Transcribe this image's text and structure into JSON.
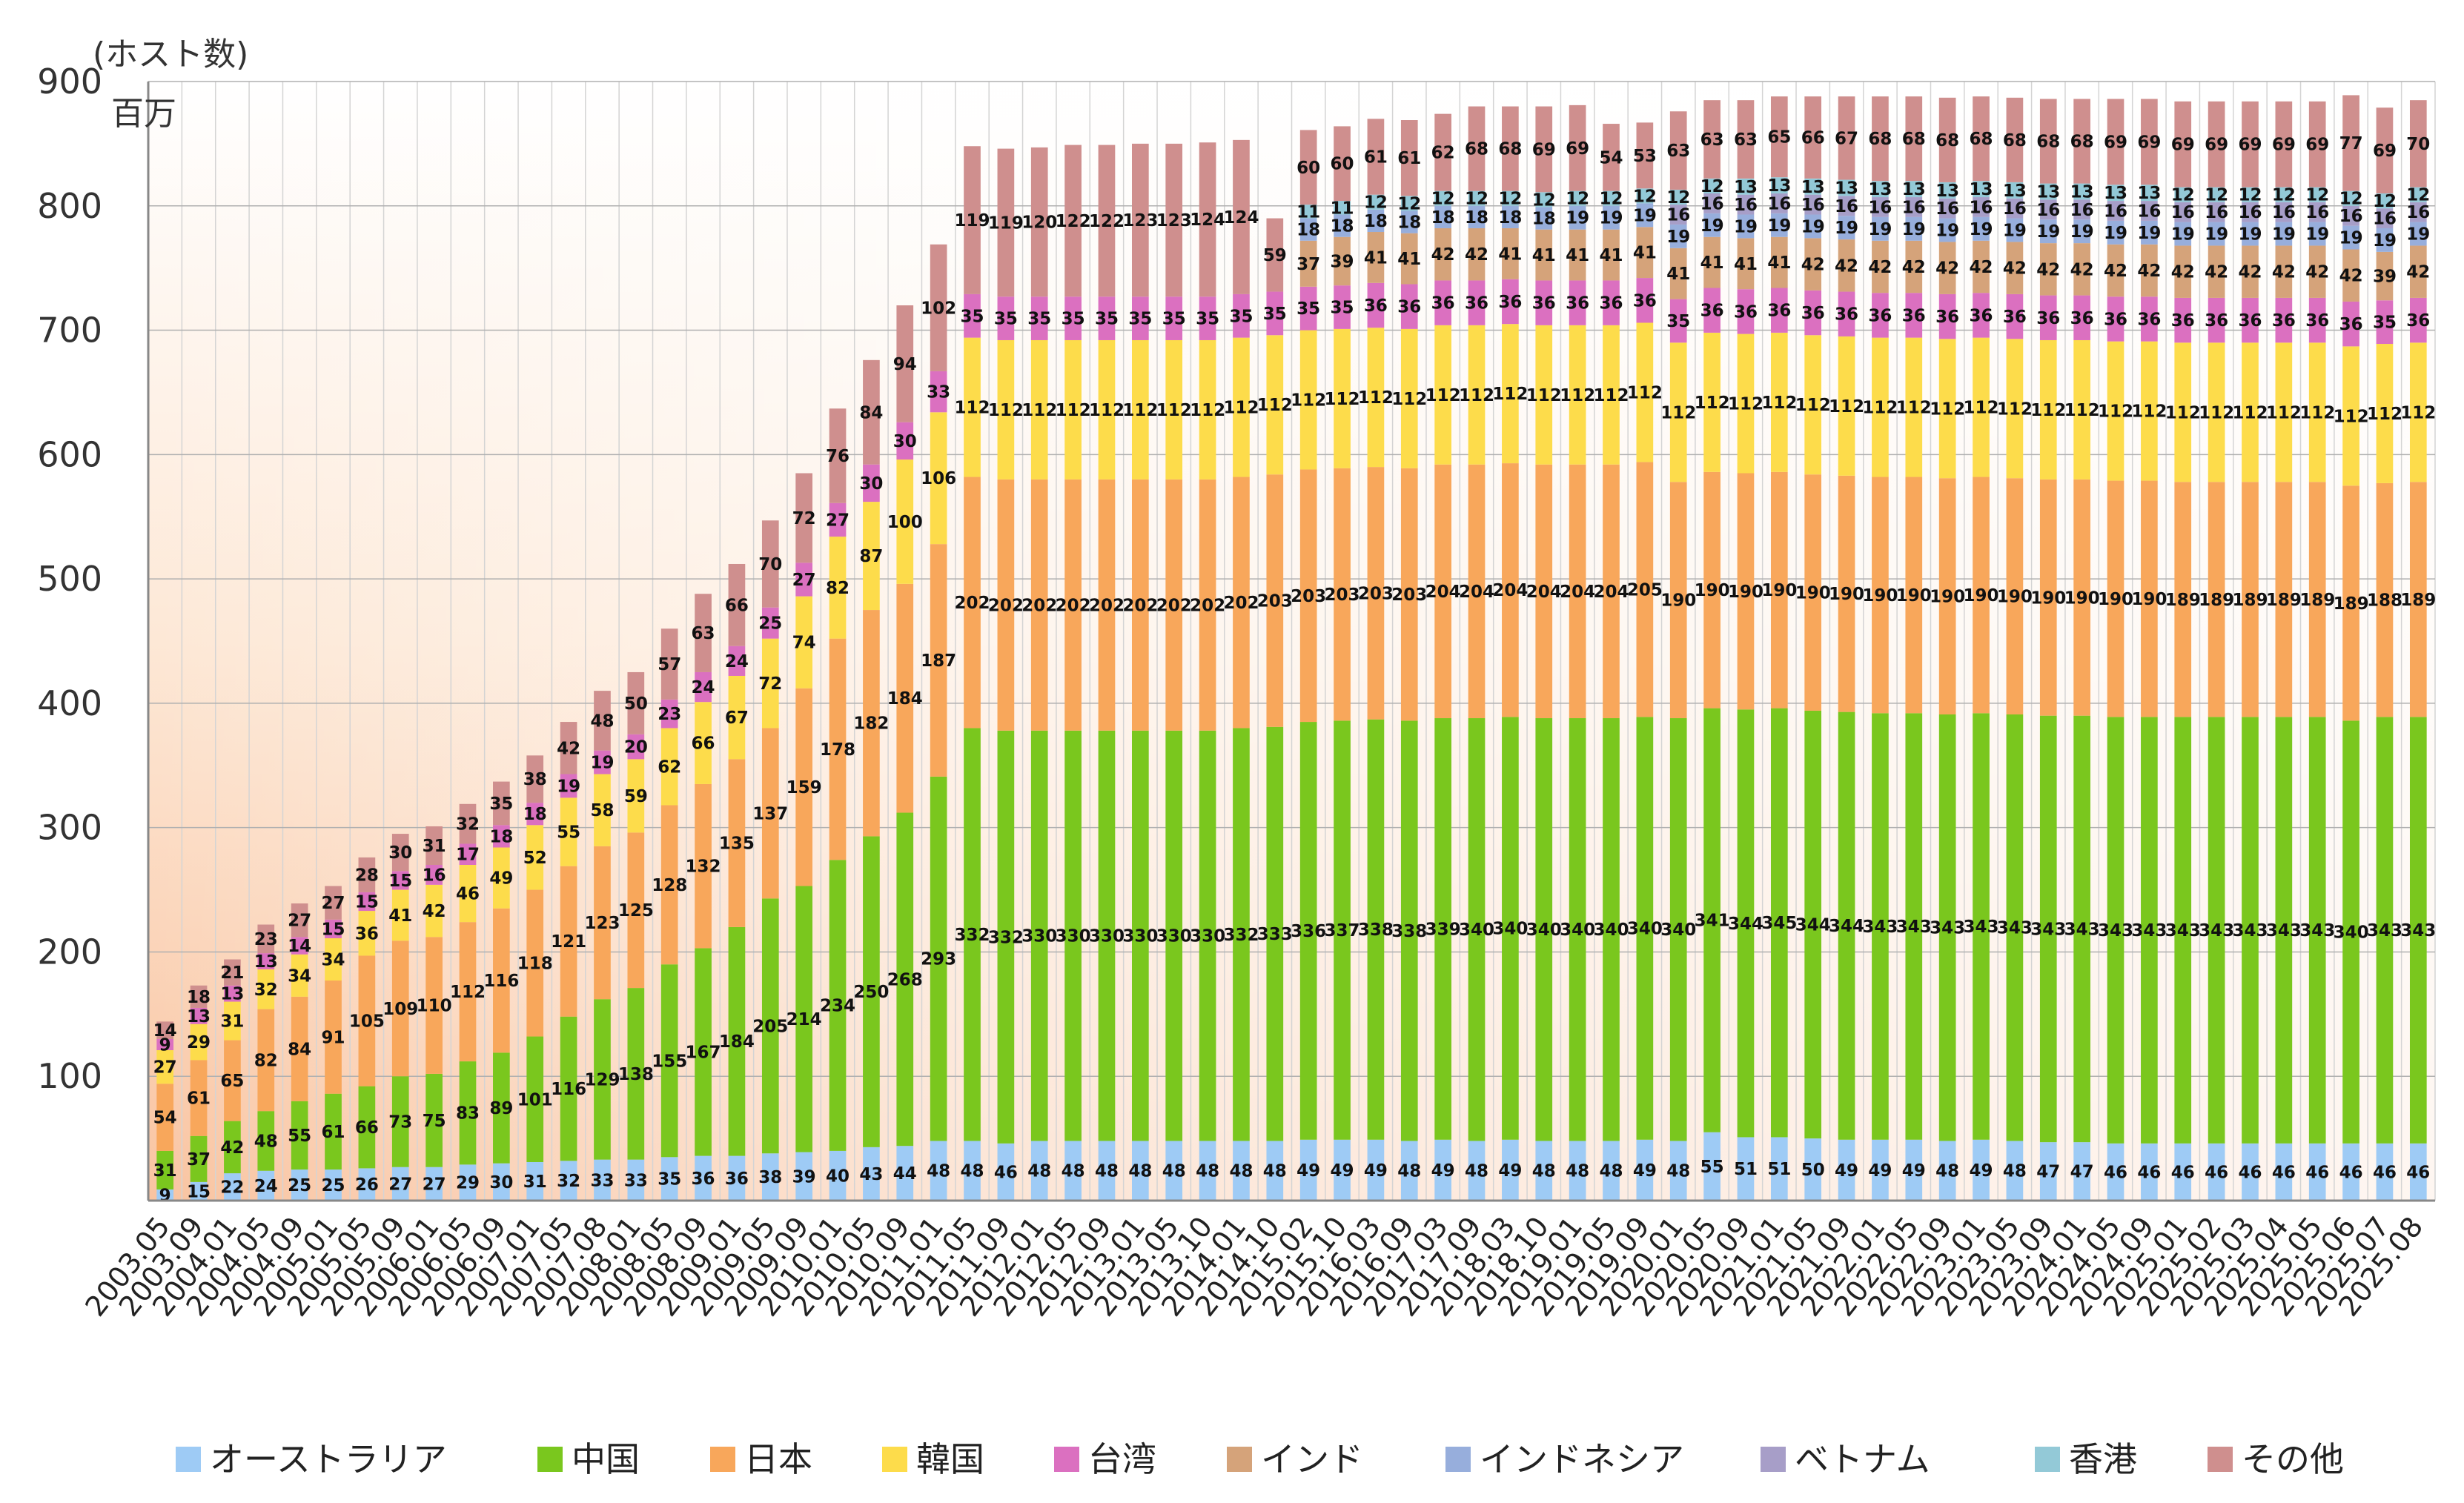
{
  "chart_data": {
    "type": "bar",
    "stacked": true,
    "ylabel": "(ホスト数)",
    "yunit": "百万",
    "ylim": [
      0,
      900
    ],
    "yticks": [
      100,
      200,
      300,
      400,
      500,
      600,
      700,
      800,
      900
    ],
    "grid": true,
    "legend_position": "bottom",
    "categories": [
      "2003.05",
      "2003.09",
      "2004.01",
      "2004.05",
      "2004.09",
      "2005.01",
      "2005.05",
      "2005.09",
      "2006.01",
      "2006.05",
      "2006.09",
      "2007.01",
      "2007.05",
      "2007.08",
      "2008.01",
      "2008.05",
      "2008.09",
      "2009.01",
      "2009.05",
      "2009.09",
      "2010.01",
      "2010.05",
      "2010.09",
      "2011.01",
      "2011.05",
      "2011.09",
      "2012.01",
      "2012.05",
      "2012.09",
      "2013.01",
      "2013.05",
      "2013.10",
      "2014.01",
      "2014.10",
      "2015.02",
      "2015.10",
      "2016.03",
      "2016.09",
      "2017.03",
      "2017.09",
      "2018.03",
      "2018.10",
      "2019.01",
      "2019.05",
      "2019.09",
      "2020.01",
      "2020.05",
      "2020.09",
      "2021.01",
      "2021.05",
      "2021.09",
      "2022.01",
      "2022.05",
      "2022.09",
      "2023.01",
      "2023.05",
      "2023.09",
      "2024.01",
      "2024.05",
      "2024.09",
      "2025.01",
      "2025.02",
      "2025.03",
      "2025.04",
      "2025.05",
      "2025.06",
      "2025.07",
      "2025.08"
    ],
    "x_tick_labels": [
      "2003.05",
      "2003.09",
      "2004.01",
      "2004.05",
      "2004.09",
      "2005.01",
      "2005.05",
      "2005.09",
      "2006.01",
      "2006.05",
      "2006.09",
      "2007.01",
      "2007.05",
      "2007.08",
      "2008.01",
      "2008.05",
      "2008.09",
      "2009.01",
      "2009.05",
      "2009.09",
      "2010.01",
      "2010.05",
      "2010.09",
      "2011.01",
      "2011.05",
      "2011.09",
      "2012.01",
      "2012.05",
      "2012.09",
      "2013.01",
      "2013.05",
      "2013.10",
      "2014.01",
      "2014.10",
      "2015.02",
      "2015.10",
      "2016.03",
      "2016.09",
      "2017.03",
      "2017.09",
      "2018.03",
      "2018.10",
      "2019.01",
      "2019.05",
      "2019.09",
      "2020.01",
      "2020.05",
      "2020.09",
      "2021.01",
      "2021.05",
      "2021.09",
      "2022.01",
      "2022.05",
      "2022.09",
      "2023.01",
      "2023.05",
      "2023.09",
      "2024.01",
      "2024.05",
      "2024.09",
      "2025.01",
      "2025.02",
      "2025.03",
      "2025.04",
      "2025.05",
      "2025.06",
      "2025.07",
      "2025.08"
    ],
    "series": [
      {
        "name": "オーストラリア",
        "color": "#9ecbf5",
        "values": [
          9,
          15,
          22,
          24,
          25,
          25,
          26,
          27,
          27,
          29,
          30,
          31,
          32,
          33,
          33,
          35,
          36,
          36,
          38,
          39,
          40,
          43,
          44,
          48,
          48,
          46,
          48,
          48,
          48,
          48,
          48,
          48,
          48,
          48,
          49,
          49,
          49,
          48,
          49,
          48,
          49,
          48,
          48,
          48,
          49,
          48,
          55,
          51,
          51,
          50,
          49,
          49,
          49,
          48,
          49,
          48,
          47,
          47,
          46,
          46,
          46,
          46,
          46,
          46,
          46,
          46,
          46,
          46
        ]
      },
      {
        "name": "中国",
        "color": "#7ac71e",
        "values": [
          31,
          37,
          42,
          48,
          55,
          61,
          66,
          73,
          75,
          83,
          89,
          101,
          116,
          129,
          138,
          155,
          167,
          184,
          205,
          214,
          234,
          250,
          268,
          293,
          332,
          332,
          330,
          330,
          330,
          330,
          330,
          330,
          332,
          333,
          336,
          337,
          338,
          338,
          339,
          340,
          340,
          340,
          340,
          340,
          340,
          340,
          341,
          344,
          345,
          344,
          344,
          343,
          343,
          343,
          343,
          343,
          343,
          343,
          343,
          343,
          343,
          343,
          343,
          343,
          343,
          340,
          343,
          343
        ]
      },
      {
        "name": "日本",
        "color": "#f8a75b",
        "values": [
          54,
          61,
          65,
          82,
          84,
          91,
          105,
          109,
          110,
          112,
          116,
          118,
          121,
          123,
          125,
          128,
          132,
          135,
          137,
          159,
          178,
          182,
          184,
          187,
          202,
          202,
          202,
          202,
          202,
          202,
          202,
          202,
          202,
          203,
          203,
          203,
          203,
          203,
          204,
          204,
          204,
          204,
          204,
          204,
          205,
          190,
          190,
          190,
          190,
          190,
          190,
          190,
          190,
          190,
          190,
          190,
          190,
          190,
          190,
          190,
          189,
          189,
          189,
          189,
          189,
          189,
          188,
          189
        ]
      },
      {
        "name": "韓国",
        "color": "#fddc4b",
        "values": [
          27,
          29,
          31,
          32,
          34,
          34,
          36,
          41,
          42,
          46,
          49,
          52,
          55,
          58,
          59,
          62,
          66,
          67,
          72,
          74,
          82,
          87,
          100,
          106,
          112,
          112,
          112,
          112,
          112,
          112,
          112,
          112,
          112,
          112,
          112,
          112,
          112,
          112,
          112,
          112,
          112,
          112,
          112,
          112,
          112,
          112,
          112,
          112,
          112,
          112,
          112,
          112,
          112,
          112,
          112,
          112,
          112,
          112,
          112,
          112,
          112,
          112,
          112,
          112,
          112,
          112,
          112,
          112
        ]
      },
      {
        "name": "台湾",
        "color": "#db70c0",
        "values": [
          9,
          13,
          13,
          13,
          14,
          15,
          15,
          15,
          16,
          17,
          18,
          18,
          19,
          19,
          20,
          23,
          24,
          24,
          25,
          27,
          27,
          30,
          30,
          33,
          35,
          35,
          35,
          35,
          35,
          35,
          35,
          35,
          35,
          35,
          35,
          35,
          36,
          36,
          36,
          36,
          36,
          36,
          36,
          36,
          36,
          35,
          36,
          36,
          36,
          36,
          36,
          36,
          36,
          36,
          36,
          36,
          36,
          36,
          36,
          36,
          36,
          36,
          36,
          36,
          36,
          36,
          35,
          36
        ]
      },
      {
        "name": "インド",
        "color": "#d5a37a",
        "values": [
          0,
          0,
          0,
          0,
          0,
          0,
          0,
          0,
          0,
          0,
          0,
          0,
          0,
          0,
          0,
          0,
          0,
          0,
          0,
          0,
          0,
          0,
          0,
          0,
          0,
          0,
          0,
          0,
          0,
          0,
          0,
          0,
          0,
          0,
          37,
          39,
          41,
          41,
          42,
          42,
          41,
          41,
          41,
          41,
          41,
          41,
          41,
          41,
          41,
          42,
          42,
          42,
          42,
          42,
          42,
          42,
          42,
          42,
          42,
          42,
          42,
          42,
          42,
          42,
          42,
          42,
          39,
          42
        ]
      },
      {
        "name": "インドネシア",
        "color": "#97aedc",
        "values": [
          0,
          0,
          0,
          0,
          0,
          0,
          0,
          0,
          0,
          0,
          0,
          0,
          0,
          0,
          0,
          0,
          0,
          0,
          0,
          0,
          0,
          0,
          0,
          0,
          0,
          0,
          0,
          0,
          0,
          0,
          0,
          0,
          0,
          0,
          18,
          18,
          18,
          18,
          18,
          18,
          18,
          18,
          19,
          19,
          19,
          19,
          19,
          19,
          19,
          19,
          19,
          19,
          19,
          19,
          19,
          19,
          19,
          19,
          19,
          19,
          19,
          19,
          19,
          19,
          19,
          19,
          19,
          19
        ]
      },
      {
        "name": "ベトナム",
        "color": "#a79ec8",
        "values": [
          0,
          0,
          0,
          0,
          0,
          0,
          0,
          0,
          0,
          0,
          0,
          0,
          0,
          0,
          0,
          0,
          0,
          0,
          0,
          0,
          0,
          0,
          0,
          0,
          0,
          0,
          0,
          0,
          0,
          0,
          0,
          0,
          0,
          0,
          0,
          0,
          0,
          0,
          0,
          0,
          0,
          0,
          0,
          0,
          0,
          16,
          16,
          16,
          16,
          16,
          16,
          16,
          16,
          16,
          16,
          16,
          16,
          16,
          16,
          16,
          16,
          16,
          16,
          16,
          16,
          16,
          16,
          16
        ]
      },
      {
        "name": "香港",
        "color": "#93c9d7",
        "values": [
          0,
          0,
          0,
          0,
          0,
          0,
          0,
          0,
          0,
          0,
          0,
          0,
          0,
          0,
          0,
          0,
          0,
          0,
          0,
          0,
          0,
          0,
          0,
          0,
          0,
          0,
          0,
          0,
          0,
          0,
          0,
          0,
          0,
          0,
          11,
          11,
          12,
          12,
          12,
          12,
          12,
          12,
          12,
          12,
          12,
          12,
          12,
          13,
          13,
          13,
          13,
          13,
          13,
          13,
          13,
          13,
          13,
          13,
          13,
          13,
          12,
          12,
          12,
          12,
          12,
          12,
          12,
          12
        ]
      },
      {
        "name": "その他",
        "color": "#cf8f8e",
        "values": [
          14,
          18,
          21,
          23,
          27,
          27,
          28,
          30,
          31,
          32,
          35,
          38,
          42,
          48,
          50,
          57,
          63,
          66,
          70,
          72,
          76,
          84,
          94,
          102,
          119,
          119,
          120,
          122,
          122,
          123,
          123,
          124,
          124,
          59,
          60,
          60,
          61,
          61,
          62,
          68,
          68,
          69,
          69,
          54,
          53,
          63,
          63,
          63,
          65,
          66,
          67,
          68,
          68,
          68,
          68,
          68,
          68,
          68,
          69,
          69,
          69,
          69,
          69,
          69,
          69,
          77,
          69,
          70
        ]
      }
    ]
  }
}
